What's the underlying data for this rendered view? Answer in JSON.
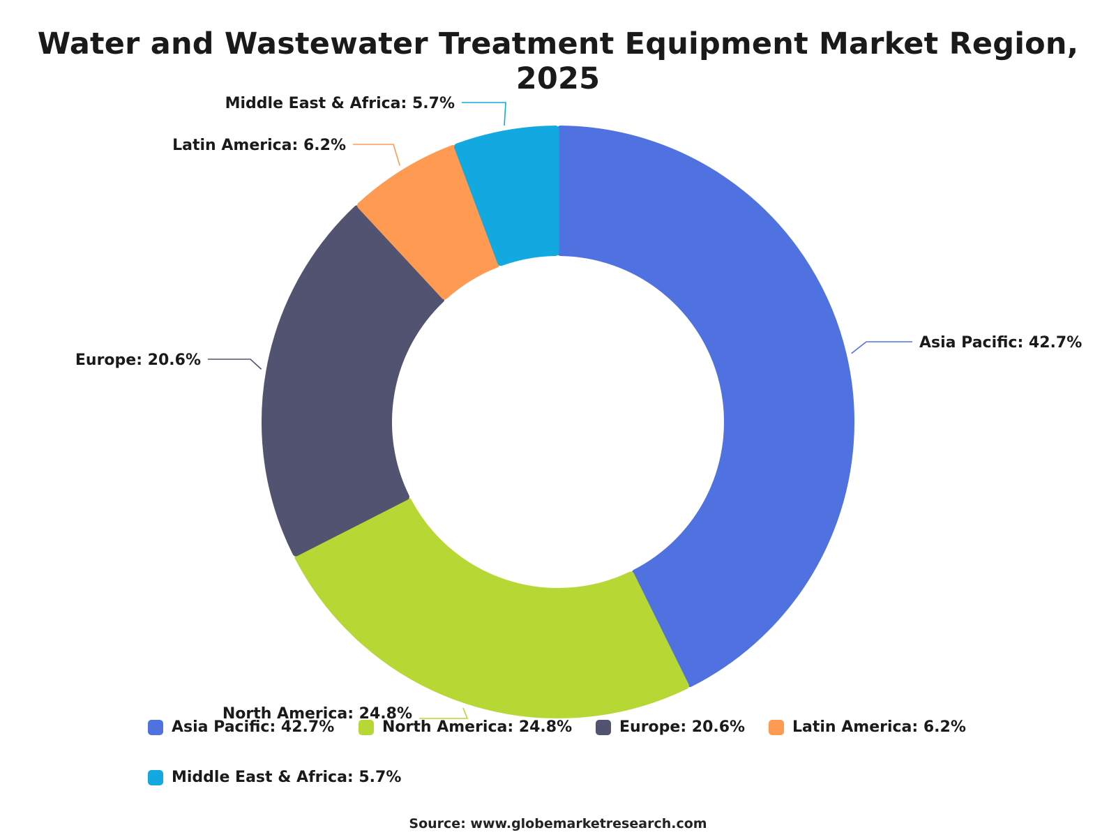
{
  "chart_data": {
    "type": "pie",
    "title": "Water and Wastewater Treatment Equipment Market Region, 2025",
    "labels": [
      "Asia Pacific",
      "North America",
      "Europe",
      "Latin America",
      "Middle East & Africa"
    ],
    "values": [
      42.7,
      24.8,
      20.6,
      6.2,
      5.7
    ],
    "unit": "%",
    "donut": true,
    "colors": [
      "#5072e0",
      "#b7d734",
      "#515370",
      "#ff9a52",
      "#12a9e0"
    ],
    "slice_labels": [
      "Asia Pacific: 42.7%",
      "North America: 24.8%",
      "Europe: 20.6%",
      "Latin America: 6.2%",
      "Middle East & Africa: 5.7%"
    ],
    "legend": {
      "position": "bottom",
      "entries": [
        "Asia Pacific: 42.7%",
        "North America: 24.8%",
        "Europe: 20.6%",
        "Latin America: 6.2%",
        "Middle East & Africa: 5.7%"
      ]
    }
  },
  "source": "Source: www.globemarketresearch.com"
}
